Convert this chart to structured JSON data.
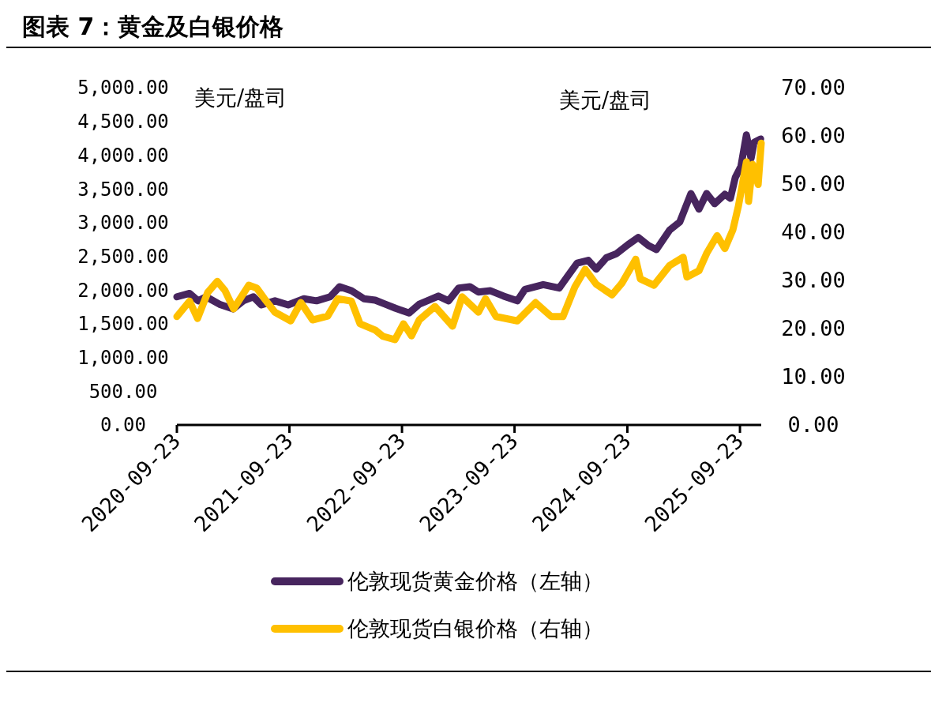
{
  "chart_data": {
    "type": "line",
    "title": "图表 7：黄金及白银价格",
    "annotations": [
      "美元/盘司",
      "美元/盘司"
    ],
    "xlim": [
      "2020-09-23",
      "2025-12-01"
    ],
    "xticks": [
      "2020-09-23",
      "2021-09-23",
      "2022-09-23",
      "2023-09-23",
      "2024-09-23",
      "2025-09-23"
    ],
    "ylim": [
      0,
      5000
    ],
    "yticks": [
      {
        "value": 0,
        "label": "0.00"
      },
      {
        "value": 500,
        "label": "500.00"
      },
      {
        "value": 1000,
        "label": "1,000.00"
      },
      {
        "value": 1500,
        "label": "1,500.00"
      },
      {
        "value": 2000,
        "label": "2,000.00"
      },
      {
        "value": 2500,
        "label": "2,500.00"
      },
      {
        "value": 3000,
        "label": "3,000.00"
      },
      {
        "value": 3500,
        "label": "3,500.00"
      },
      {
        "value": 4000,
        "label": "4,000.00"
      },
      {
        "value": 4500,
        "label": "4,500.00"
      },
      {
        "value": 5000,
        "label": "5,000.00"
      }
    ],
    "y2lim": [
      0,
      70
    ],
    "y2ticks": [
      {
        "value": 0,
        "label": "0.00"
      },
      {
        "value": 10,
        "label": "10.00"
      },
      {
        "value": 20,
        "label": "20.00"
      },
      {
        "value": 30,
        "label": "30.00"
      },
      {
        "value": 40,
        "label": "40.00"
      },
      {
        "value": 50,
        "label": "50.00"
      },
      {
        "value": 60,
        "label": "60.00"
      },
      {
        "value": 70,
        "label": "70.00"
      }
    ],
    "grid": false,
    "legend": "bottom",
    "marker": "none",
    "line_style": "solid",
    "series": [
      {
        "name": "伦敦现货黄金价格（左轴）",
        "color": "#47255e",
        "x": [
          "2020-09-23",
          "2020-11-03",
          "2020-12-01",
          "2020-12-27",
          "2021-02-08",
          "2021-03-24",
          "2021-04-26",
          "2021-05-29",
          "2021-06-24",
          "2021-08-07",
          "2021-09-19",
          "2021-11-09",
          "2021-12-20",
          "2022-02-02",
          "2022-03-05",
          "2022-04-12",
          "2022-05-23",
          "2022-06-28",
          "2022-07-31",
          "2022-09-02",
          "2022-10-16",
          "2022-11-18",
          "2023-01-19",
          "2023-02-21",
          "2023-03-26",
          "2023-05-01",
          "2023-05-29",
          "2023-07-07",
          "2023-08-19",
          "2023-10-02",
          "2023-10-27",
          "2023-12-25",
          "2024-02-15",
          "2024-03-11",
          "2024-04-13",
          "2024-05-19",
          "2024-06-14",
          "2024-07-17",
          "2024-08-19",
          "2024-09-24",
          "2024-10-28",
          "2024-11-30",
          "2024-12-26",
          "2025-02-07",
          "2025-03-12",
          "2025-04-17",
          "2025-05-13",
          "2025-06-07",
          "2025-07-03",
          "2025-08-05",
          "2025-08-23",
          "2025-09-08",
          "2025-09-26",
          "2025-10-14",
          "2025-10-29",
          "2025-11-08",
          "2025-11-29"
        ],
        "values": [
          1900,
          1950,
          1840,
          1900,
          1790,
          1720,
          1840,
          1900,
          1780,
          1840,
          1780,
          1870,
          1840,
          1900,
          2050,
          1990,
          1870,
          1850,
          1790,
          1730,
          1660,
          1790,
          1910,
          1840,
          2030,
          2050,
          1970,
          1990,
          1910,
          1840,
          2010,
          2080,
          2030,
          2190,
          2400,
          2440,
          2310,
          2480,
          2540,
          2670,
          2780,
          2660,
          2600,
          2890,
          3010,
          3430,
          3200,
          3430,
          3280,
          3420,
          3360,
          3670,
          3830,
          4300,
          3950,
          4190,
          4240
        ]
      },
      {
        "name": "伦敦现货白银价格（右轴）",
        "color": "#ffc000",
        "axis": "y2",
        "x": [
          "2020-09-23",
          "2020-11-03",
          "2020-11-29",
          "2021-01-01",
          "2021-02-01",
          "2021-02-26",
          "2021-03-26",
          "2021-05-14",
          "2021-06-09",
          "2021-07-04",
          "2021-08-07",
          "2021-09-27",
          "2021-10-30",
          "2021-12-07",
          "2022-01-25",
          "2022-02-27",
          "2022-04-12",
          "2022-05-10",
          "2022-06-28",
          "2022-07-23",
          "2022-08-31",
          "2022-09-28",
          "2022-10-24",
          "2022-11-18",
          "2023-01-08",
          "2023-03-06",
          "2023-04-06",
          "2023-05-29",
          "2023-06-21",
          "2023-07-25",
          "2023-10-02",
          "2023-11-30",
          "2024-01-20",
          "2024-02-27",
          "2024-04-06",
          "2024-05-09",
          "2024-06-14",
          "2024-08-04",
          "2024-09-06",
          "2024-10-20",
          "2024-11-04",
          "2024-12-18",
          "2025-02-07",
          "2025-03-23",
          "2025-04-04",
          "2025-05-13",
          "2025-06-07",
          "2025-07-11",
          "2025-08-05",
          "2025-08-31",
          "2025-09-18",
          "2025-10-14",
          "2025-10-21",
          "2025-11-03",
          "2025-11-21",
          "2025-12-01"
        ],
        "values": [
          22.5,
          25.7,
          22.1,
          27.5,
          29.8,
          27.9,
          24.1,
          29.0,
          28.4,
          26.2,
          23.4,
          21.6,
          25.4,
          21.8,
          22.6,
          26.2,
          25.7,
          21.0,
          19.7,
          18.4,
          17.7,
          21.0,
          18.5,
          21.8,
          24.6,
          20.5,
          26.6,
          23.4,
          26.2,
          22.5,
          21.6,
          25.4,
          22.5,
          22.5,
          28.7,
          32.3,
          29.2,
          27.0,
          29.5,
          34.4,
          30.3,
          29.0,
          33.1,
          34.8,
          30.7,
          32.0,
          35.6,
          39.3,
          36.6,
          40.5,
          45.4,
          54.6,
          46.4,
          54.1,
          49.9,
          58.5
        ]
      }
    ]
  }
}
